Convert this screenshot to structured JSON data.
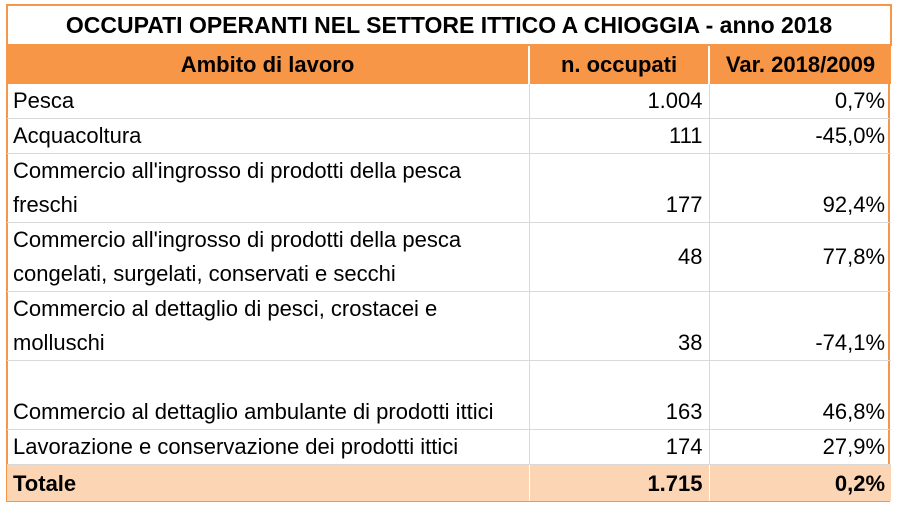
{
  "title": "OCCUPATI OPERANTI NEL SETTORE ITTICO A CHIOGGIA - anno 2018",
  "headers": {
    "ambito": "Ambito di lavoro",
    "occupati": "n. occupati",
    "variazione": "Var. 2018/2009"
  },
  "rows": [
    {
      "ambito": "Pesca",
      "occupati": "1.004",
      "variazione": "0,7%"
    },
    {
      "ambito": "Acquacoltura",
      "occupati": "111",
      "variazione": "-45,0%"
    },
    {
      "ambito": "Commercio all'ingrosso di prodotti della pesca freschi",
      "occupati": "177",
      "variazione": "92,4%"
    },
    {
      "ambito": "Commercio all'ingrosso di prodotti della pesca congelati, surgelati, conservati e secchi",
      "occupati": "48",
      "variazione": "77,8%"
    },
    {
      "ambito": "Commercio al dettaglio di pesci, crostacei e molluschi",
      "occupati": "38",
      "variazione": "-74,1%"
    },
    {
      "ambito": "Commercio al dettaglio ambulante di prodotti ittici",
      "occupati": "163",
      "variazione": "46,8%"
    },
    {
      "ambito": "Lavorazione e conservazione dei prodotti ittici",
      "occupati": "174",
      "variazione": "27,9%"
    }
  ],
  "total": {
    "ambito": "Totale",
    "occupati": "1.715",
    "variazione": "0,2%"
  },
  "colors": {
    "header_orange": "#f79646",
    "total_peach": "#fcd5b4"
  }
}
